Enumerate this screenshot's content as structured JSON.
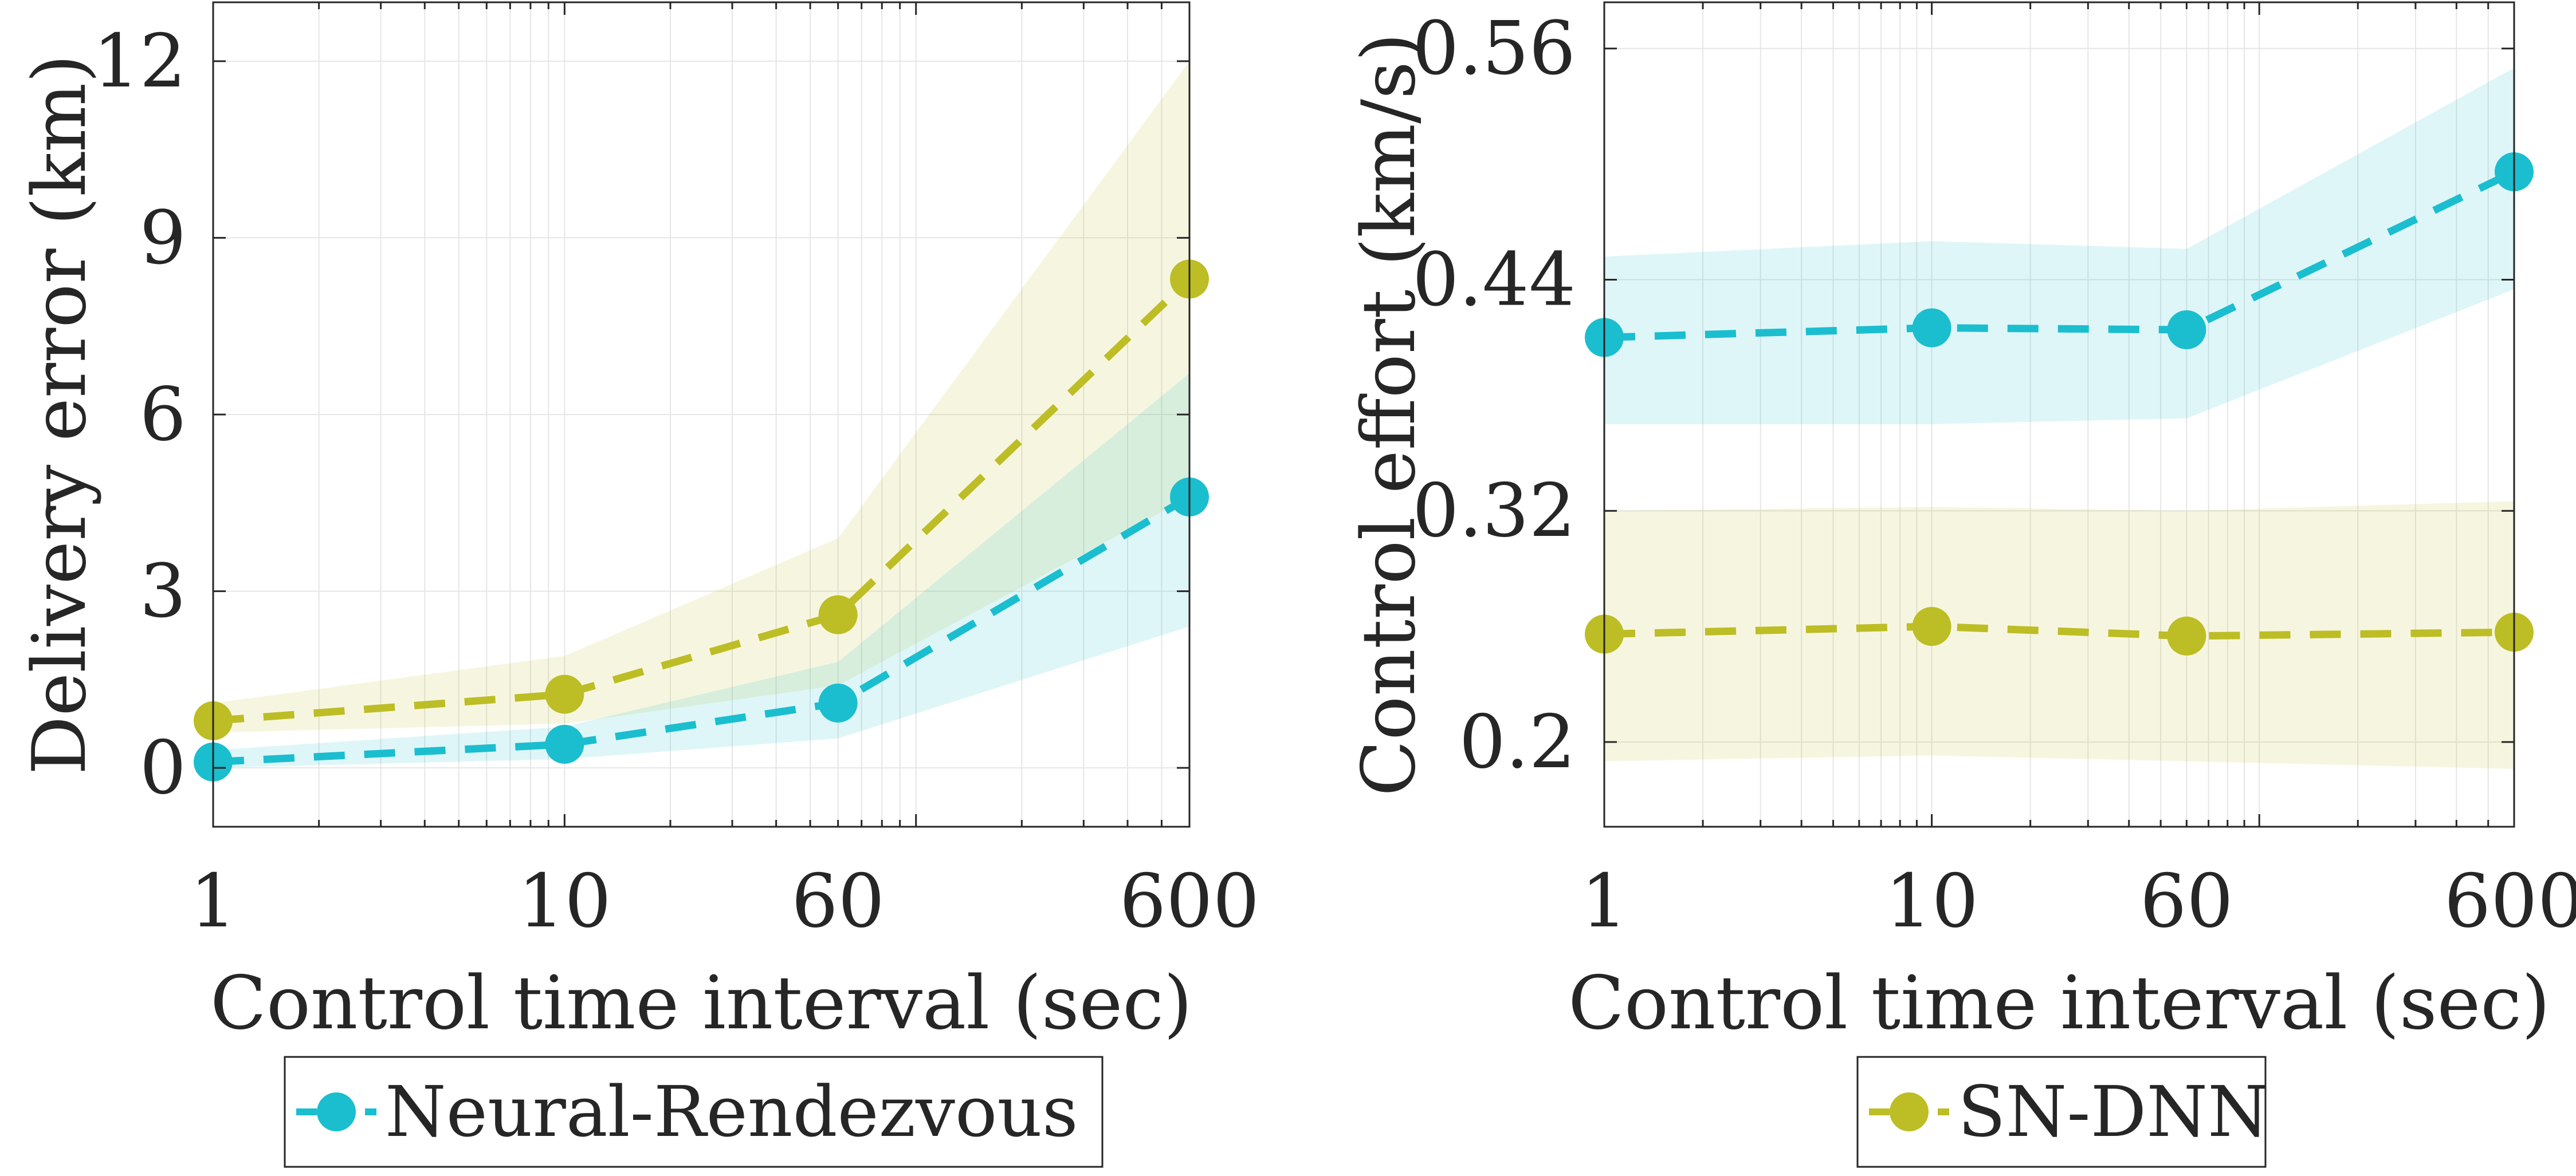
{
  "chart_data": [
    {
      "type": "line",
      "xscale": "log",
      "xlabel": "Control time interval (sec)",
      "ylabel": "Delivery error (km)",
      "x": [
        1,
        10,
        60,
        600
      ],
      "xticks": [
        1,
        10,
        60,
        600
      ],
      "xtick_labels": [
        "1",
        "10",
        "60",
        "600"
      ],
      "xlim": [
        1,
        600
      ],
      "ylim": [
        -1,
        13
      ],
      "yticks": [
        0,
        3,
        6,
        9,
        12
      ],
      "ytick_labels": [
        "0",
        "3",
        "6",
        "9",
        "12"
      ],
      "grid": true,
      "series": [
        {
          "name": "SN-DNN",
          "color": "#BDBD25",
          "values": [
            0.8,
            1.25,
            2.6,
            8.3
          ],
          "band_low": [
            0.6,
            0.75,
            1.4,
            4.6
          ],
          "band_high": [
            1.1,
            1.9,
            3.9,
            12.0
          ]
        },
        {
          "name": "Neural-Rendezvous",
          "color": "#1ABECF",
          "values": [
            0.1,
            0.4,
            1.1,
            4.6
          ],
          "band_low": [
            0.0,
            0.15,
            0.5,
            2.4
          ],
          "band_high": [
            0.3,
            0.7,
            1.8,
            6.7
          ]
        }
      ],
      "legend": {
        "entries": [
          "Neural-Rendezvous"
        ],
        "position": "bottom"
      }
    },
    {
      "type": "line",
      "xscale": "log",
      "xlabel": "Control time interval (sec)",
      "ylabel": "Control effort (km/s)",
      "x": [
        1,
        10,
        60,
        600
      ],
      "xticks": [
        1,
        10,
        60,
        600
      ],
      "xtick_labels": [
        "1",
        "10",
        "60",
        "600"
      ],
      "xlim": [
        1,
        600
      ],
      "ylim": [
        0.156,
        0.584
      ],
      "yticks": [
        0.2,
        0.32,
        0.44,
        0.56
      ],
      "ytick_labels": [
        "0.2",
        "0.32",
        "0.44",
        "0.56"
      ],
      "grid": true,
      "series": [
        {
          "name": "Neural-Rendezvous",
          "color": "#1ABECF",
          "values": [
            0.41,
            0.415,
            0.414,
            0.496
          ],
          "band_low": [
            0.365,
            0.365,
            0.368,
            0.435
          ],
          "band_high": [
            0.452,
            0.46,
            0.456,
            0.55
          ]
        },
        {
          "name": "SN-DNN",
          "color": "#BDBD25",
          "values": [
            0.256,
            0.26,
            0.255,
            0.257
          ],
          "band_low": [
            0.19,
            0.193,
            0.19,
            0.186
          ],
          "band_high": [
            0.32,
            0.322,
            0.32,
            0.325
          ]
        }
      ],
      "legend": {
        "entries": [
          "SN-DNN"
        ],
        "position": "bottom"
      }
    }
  ]
}
